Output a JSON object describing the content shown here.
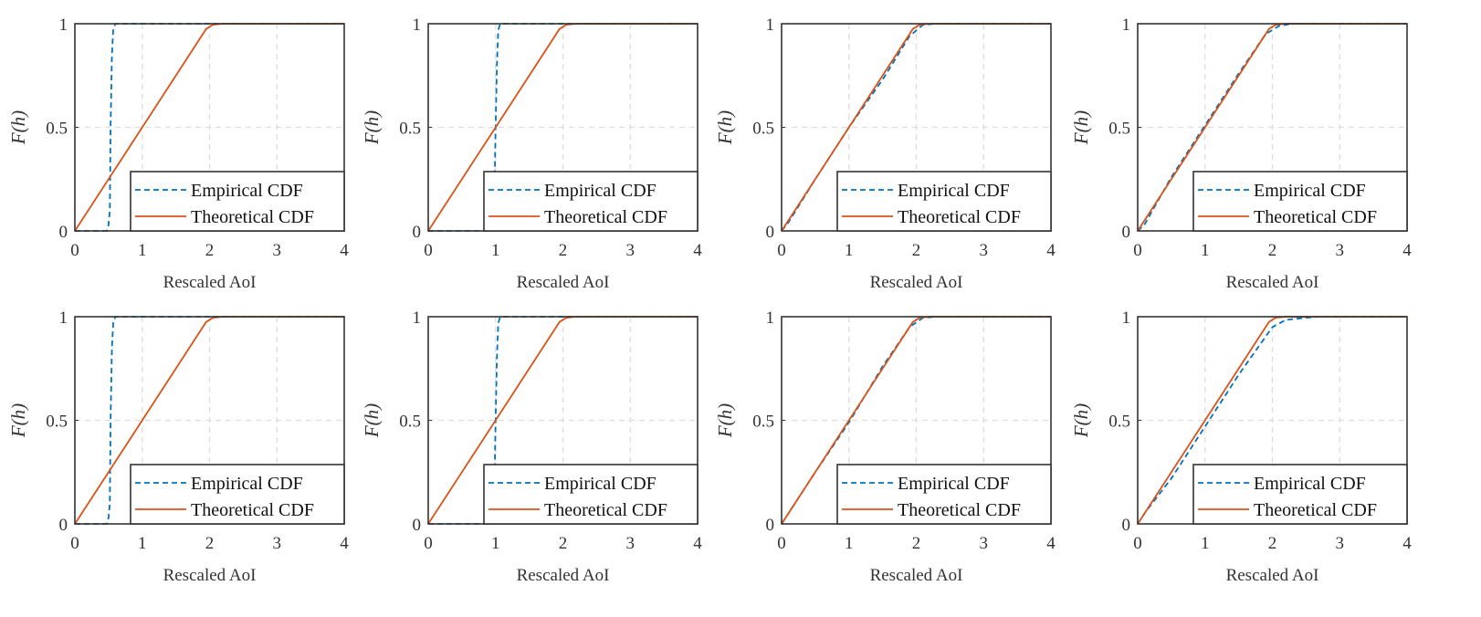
{
  "chart_data": [
    {
      "type": "line",
      "xlabel": "Rescaled AoI",
      "ylabel": "F(h)",
      "xlim": [
        0,
        4
      ],
      "ylim": [
        0,
        1
      ],
      "xticks": [
        "0",
        "1",
        "2",
        "3",
        "4"
      ],
      "yticks": [
        "0",
        "0.5",
        "1"
      ],
      "grid": true,
      "legend": "bottom-right",
      "series": [
        {
          "name": "Empirical CDF",
          "color": "#0072BD",
          "style": "dashed",
          "points": [
            [
              0,
              0
            ],
            [
              0.47,
              0
            ],
            [
              0.5,
              0.03
            ],
            [
              0.52,
              0.1
            ],
            [
              0.53,
              0.5
            ],
            [
              0.55,
              0.85
            ],
            [
              0.57,
              0.97
            ],
            [
              0.6,
              1
            ],
            [
              4,
              1
            ]
          ]
        },
        {
          "name": "Theoretical CDF",
          "color": "#D95319",
          "style": "solid",
          "points": [
            [
              0,
              0
            ],
            [
              1,
              0.5
            ],
            [
              1.95,
              0.975
            ],
            [
              2.05,
              0.995
            ],
            [
              2.2,
              1
            ],
            [
              4,
              1
            ]
          ]
        }
      ]
    },
    {
      "type": "line",
      "xlabel": "Rescaled AoI",
      "ylabel": "F(h)",
      "xlim": [
        0,
        4
      ],
      "ylim": [
        0,
        1
      ],
      "xticks": [
        "0",
        "1",
        "2",
        "3",
        "4"
      ],
      "yticks": [
        "0",
        "0.5",
        "1"
      ],
      "grid": true,
      "legend": "bottom-right",
      "series": [
        {
          "name": "Empirical CDF",
          "color": "#0072BD",
          "style": "dashed",
          "points": [
            [
              0,
              0
            ],
            [
              0.94,
              0
            ],
            [
              0.97,
              0.05
            ],
            [
              0.99,
              0.3
            ],
            [
              1.0,
              0.5
            ],
            [
              1.02,
              0.8
            ],
            [
              1.04,
              0.97
            ],
            [
              1.07,
              1
            ],
            [
              4,
              1
            ]
          ]
        },
        {
          "name": "Theoretical CDF",
          "color": "#D95319",
          "style": "solid",
          "points": [
            [
              0,
              0
            ],
            [
              1,
              0.5
            ],
            [
              1.95,
              0.975
            ],
            [
              2.05,
              0.995
            ],
            [
              2.2,
              1
            ],
            [
              4,
              1
            ]
          ]
        }
      ]
    },
    {
      "type": "line",
      "xlabel": "Rescaled AoI",
      "ylabel": "F(h)",
      "xlim": [
        0,
        4
      ],
      "ylim": [
        0,
        1
      ],
      "xticks": [
        "0",
        "1",
        "2",
        "3",
        "4"
      ],
      "yticks": [
        "0",
        "0.5",
        "1"
      ],
      "grid": true,
      "legend": "bottom-right",
      "series": [
        {
          "name": "Empirical CDF",
          "color": "#0072BD",
          "style": "dashed",
          "points": [
            [
              0,
              0
            ],
            [
              0.1,
              0.04
            ],
            [
              0.5,
              0.25
            ],
            [
              1,
              0.5
            ],
            [
              1.5,
              0.73
            ],
            [
              1.9,
              0.94
            ],
            [
              2.1,
              0.995
            ],
            [
              2.3,
              1
            ],
            [
              4,
              1
            ]
          ]
        },
        {
          "name": "Theoretical CDF",
          "color": "#D95319",
          "style": "solid",
          "points": [
            [
              0,
              0
            ],
            [
              1,
              0.5
            ],
            [
              1.95,
              0.975
            ],
            [
              2.05,
              0.995
            ],
            [
              2.2,
              1
            ],
            [
              4,
              1
            ]
          ]
        }
      ]
    },
    {
      "type": "line",
      "xlabel": "Rescaled AoI",
      "ylabel": "F(h)",
      "xlim": [
        0,
        4
      ],
      "ylim": [
        0,
        1
      ],
      "xticks": [
        "0",
        "1",
        "2",
        "3",
        "4"
      ],
      "yticks": [
        "0",
        "0.5",
        "1"
      ],
      "grid": true,
      "legend": "bottom-right",
      "series": [
        {
          "name": "Empirical CDF",
          "color": "#0072BD",
          "style": "dashed",
          "points": [
            [
              0,
              0
            ],
            [
              0.1,
              0.03
            ],
            [
              0.5,
              0.26
            ],
            [
              1,
              0.51
            ],
            [
              1.5,
              0.76
            ],
            [
              1.9,
              0.95
            ],
            [
              2.1,
              0.99
            ],
            [
              2.3,
              1
            ],
            [
              4,
              1
            ]
          ]
        },
        {
          "name": "Theoretical CDF",
          "color": "#D95319",
          "style": "solid",
          "points": [
            [
              0,
              0
            ],
            [
              1,
              0.5
            ],
            [
              1.95,
              0.975
            ],
            [
              2.05,
              0.995
            ],
            [
              2.2,
              1
            ],
            [
              4,
              1
            ]
          ]
        }
      ]
    },
    {
      "type": "line",
      "xlabel": "Rescaled AoI",
      "ylabel": "F(h)",
      "xlim": [
        0,
        4
      ],
      "ylim": [
        0,
        1
      ],
      "xticks": [
        "0",
        "1",
        "2",
        "3",
        "4"
      ],
      "yticks": [
        "0",
        "0.5",
        "1"
      ],
      "grid": true,
      "legend": "bottom-right",
      "series": [
        {
          "name": "Empirical CDF",
          "color": "#0072BD",
          "style": "dashed",
          "points": [
            [
              0,
              0
            ],
            [
              0.47,
              0
            ],
            [
              0.5,
              0.03
            ],
            [
              0.52,
              0.1
            ],
            [
              0.53,
              0.5
            ],
            [
              0.55,
              0.85
            ],
            [
              0.57,
              0.97
            ],
            [
              0.6,
              1
            ],
            [
              4,
              1
            ]
          ]
        },
        {
          "name": "Theoretical CDF",
          "color": "#D95319",
          "style": "solid",
          "points": [
            [
              0,
              0
            ],
            [
              1,
              0.5
            ],
            [
              1.95,
              0.975
            ],
            [
              2.05,
              0.995
            ],
            [
              2.2,
              1
            ],
            [
              4,
              1
            ]
          ]
        }
      ]
    },
    {
      "type": "line",
      "xlabel": "Rescaled AoI",
      "ylabel": "F(h)",
      "xlim": [
        0,
        4
      ],
      "ylim": [
        0,
        1
      ],
      "xticks": [
        "0",
        "1",
        "2",
        "3",
        "4"
      ],
      "yticks": [
        "0",
        "0.5",
        "1"
      ],
      "grid": true,
      "legend": "bottom-right",
      "series": [
        {
          "name": "Empirical CDF",
          "color": "#0072BD",
          "style": "dashed",
          "points": [
            [
              0,
              0
            ],
            [
              0.94,
              0
            ],
            [
              0.97,
              0.05
            ],
            [
              0.99,
              0.3
            ],
            [
              1.0,
              0.5
            ],
            [
              1.02,
              0.8
            ],
            [
              1.04,
              0.97
            ],
            [
              1.07,
              1
            ],
            [
              4,
              1
            ]
          ]
        },
        {
          "name": "Theoretical CDF",
          "color": "#D95319",
          "style": "solid",
          "points": [
            [
              0,
              0
            ],
            [
              1,
              0.5
            ],
            [
              1.95,
              0.975
            ],
            [
              2.05,
              0.995
            ],
            [
              2.2,
              1
            ],
            [
              4,
              1
            ]
          ]
        }
      ]
    },
    {
      "type": "line",
      "xlabel": "Rescaled AoI",
      "ylabel": "F(h)",
      "xlim": [
        0,
        4
      ],
      "ylim": [
        0,
        1
      ],
      "xticks": [
        "0",
        "1",
        "2",
        "3",
        "4"
      ],
      "yticks": [
        "0",
        "0.5",
        "1"
      ],
      "grid": true,
      "legend": "bottom-right",
      "series": [
        {
          "name": "Empirical CDF",
          "color": "#0072BD",
          "style": "dashed",
          "points": [
            [
              0,
              0
            ],
            [
              0.1,
              0.05
            ],
            [
              0.5,
              0.25
            ],
            [
              1,
              0.49
            ],
            [
              1.5,
              0.76
            ],
            [
              1.9,
              0.95
            ],
            [
              2.1,
              0.995
            ],
            [
              2.3,
              1
            ],
            [
              4,
              1
            ]
          ]
        },
        {
          "name": "Theoretical CDF",
          "color": "#D95319",
          "style": "solid",
          "points": [
            [
              0,
              0
            ],
            [
              1,
              0.5
            ],
            [
              1.95,
              0.975
            ],
            [
              2.05,
              0.995
            ],
            [
              2.2,
              1
            ],
            [
              4,
              1
            ]
          ]
        }
      ]
    },
    {
      "type": "line",
      "xlabel": "Rescaled AoI",
      "ylabel": "F(h)",
      "xlim": [
        0,
        4
      ],
      "ylim": [
        0,
        1
      ],
      "xticks": [
        "0",
        "1",
        "2",
        "3",
        "4"
      ],
      "yticks": [
        "0",
        "0.5",
        "1"
      ],
      "grid": true,
      "legend": "bottom-right",
      "series": [
        {
          "name": "Empirical CDF",
          "color": "#0072BD",
          "style": "dashed",
          "points": [
            [
              0,
              0
            ],
            [
              0.1,
              0.05
            ],
            [
              0.5,
              0.22
            ],
            [
              1,
              0.47
            ],
            [
              1.5,
              0.72
            ],
            [
              2.0,
              0.95
            ],
            [
              2.2,
              0.985
            ],
            [
              2.5,
              0.995
            ],
            [
              2.7,
              1
            ],
            [
              4,
              1
            ]
          ]
        },
        {
          "name": "Theoretical CDF",
          "color": "#D95319",
          "style": "solid",
          "points": [
            [
              0,
              0
            ],
            [
              1,
              0.5
            ],
            [
              1.95,
              0.975
            ],
            [
              2.05,
              0.995
            ],
            [
              2.2,
              1
            ],
            [
              4,
              1
            ]
          ]
        }
      ]
    }
  ]
}
